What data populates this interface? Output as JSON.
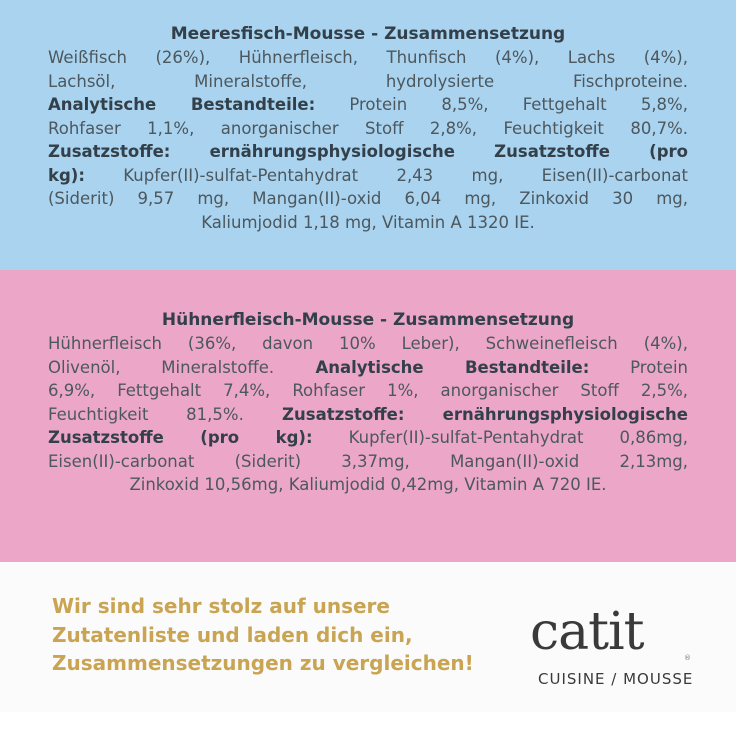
{
  "section1": {
    "title": "Meeresfisch-Mousse - Zusammensetzung",
    "lines": [
      {
        "parts": [
          {
            "t": "Weißfisch (26%), Hühnerfleisch, Thunfisch (4%), Lachs (4%),",
            "b": false
          }
        ]
      },
      {
        "parts": [
          {
            "t": "Lachsöl, Mineralstoffe, hydrolysierte Fischproteine.",
            "b": false
          }
        ]
      },
      {
        "parts": [
          {
            "t": "Analytische Bestandteile:",
            "b": true
          },
          {
            "t": " Protein 8,5%, Fettgehalt 5,8%,",
            "b": false
          }
        ]
      },
      {
        "parts": [
          {
            "t": "Rohfaser 1,1%, anorganischer Stoff 2,8%, Feuchtigkeit 80,7%.",
            "b": false
          }
        ]
      },
      {
        "parts": [
          {
            "t": "Zusatzstoffe: ernährungsphysiologische Zusatzstoffe (pro",
            "b": true
          }
        ]
      },
      {
        "parts": [
          {
            "t": "kg):",
            "b": true
          },
          {
            "t": " Kupfer(II)-sulfat-Pentahydrat 2,43 mg, Eisen(II)-carbonat",
            "b": false
          }
        ]
      },
      {
        "parts": [
          {
            "t": "(Siderit) 9,57 mg, Mangan(II)-oxid 6,04 mg, Zinkoxid 30 mg,",
            "b": false
          }
        ]
      },
      {
        "parts": [
          {
            "t": "Kaliumjodid 1,18 mg, Vitamin A 1320 IE.",
            "b": false
          }
        ]
      }
    ]
  },
  "section2": {
    "title": "Hühnerfleisch-Mousse - Zusammensetzung",
    "lines": [
      {
        "parts": [
          {
            "t": "Hühnerfleisch (36%, davon 10% Leber), Schweinefleisch (4%),",
            "b": false
          }
        ]
      },
      {
        "parts": [
          {
            "t": "Olivenöl, Mineralstoffe.",
            "b": false
          },
          {
            "t": " Analytische Bestandteile:",
            "b": true
          },
          {
            "t": " Protein",
            "b": false
          }
        ]
      },
      {
        "parts": [
          {
            "t": "6,9%, Fettgehalt 7,4%, Rohfaser 1%, anorganischer Stoff 2,5%,",
            "b": false
          }
        ]
      },
      {
        "parts": [
          {
            "t": "Feuchtigkeit 81,5%.",
            "b": false
          },
          {
            "t": " Zusatzstoffe: ernährungsphysiologische",
            "b": true
          }
        ]
      },
      {
        "parts": [
          {
            "t": "Zusatzstoffe (pro kg):",
            "b": true
          },
          {
            "t": " Kupfer(II)-sulfat-Pentahydrat 0,86mg,",
            "b": false
          }
        ]
      },
      {
        "parts": [
          {
            "t": "Eisen(II)-carbonat (Siderit) 3,37mg, Mangan(II)-oxid 2,13mg,",
            "b": false
          }
        ]
      },
      {
        "parts": [
          {
            "t": "Zinkoxid 10,56mg, Kaliumjodid 0,42mg, Vitamin A 720 IE.",
            "b": false
          }
        ]
      }
    ]
  },
  "footer": {
    "slogan": [
      "Wir sind sehr stolz auf unsere",
      "Zutatenliste und laden dich ein,",
      "Zusammensetzungen zu vergleichen!"
    ],
    "logo_text": "catit",
    "logo_mark": "®",
    "logo_sub": "CUISINE / MOUSSE"
  },
  "colors": {
    "blue_panel": "#a9d3ee",
    "pink_panel": "#eca7c8",
    "slogan_gold": "#c9a452",
    "text_dark": "#33404a"
  }
}
